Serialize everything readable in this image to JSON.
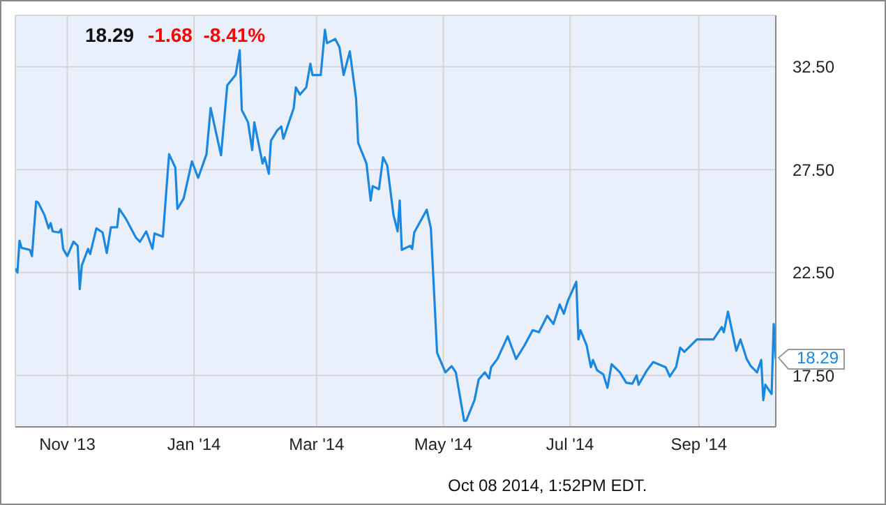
{
  "chart_data": {
    "type": "line",
    "title": "18.29",
    "subtitle": "-1.68  -8.41%",
    "annotations": [
      {
        "text": "18.29",
        "x": "2014-10-08",
        "y": 18.29
      },
      "Oct 08 2014, 1:52PM EDT."
    ],
    "x": [
      "2013-10-07",
      "2013-10-08",
      "2013-10-09",
      "2013-10-10",
      "2013-10-14",
      "2013-10-15",
      "2013-10-17",
      "2013-10-18",
      "2013-10-21",
      "2013-10-23",
      "2013-10-24",
      "2013-10-25",
      "2013-10-28",
      "2013-10-29",
      "2013-10-30",
      "2013-11-01",
      "2013-11-04",
      "2013-11-06",
      "2013-11-07",
      "2013-11-08",
      "2013-11-11",
      "2013-11-12",
      "2013-11-15",
      "2013-11-18",
      "2013-11-20",
      "2013-11-22",
      "2013-11-25",
      "2013-11-26",
      "2013-11-29",
      "2013-12-04",
      "2013-12-06",
      "2013-12-09",
      "2013-12-12",
      "2013-12-13",
      "2013-12-17",
      "2013-12-20",
      "2013-12-23",
      "2013-12-24",
      "2013-12-27",
      "2013-12-31",
      "2014-01-03",
      "2014-01-07",
      "2014-01-09",
      "2014-01-14",
      "2014-01-17",
      "2014-01-21",
      "2014-01-23",
      "2014-01-24",
      "2014-01-27",
      "2014-01-29",
      "2014-01-30",
      "2014-02-03",
      "2014-02-04",
      "2014-02-06",
      "2014-02-07",
      "2014-02-10",
      "2014-02-12",
      "2014-02-13",
      "2014-02-18",
      "2014-02-19",
      "2014-02-21",
      "2014-02-24",
      "2014-02-26",
      "2014-02-27",
      "2014-03-03",
      "2014-03-05",
      "2014-03-06",
      "2014-03-10",
      "2014-03-12",
      "2014-03-14",
      "2014-03-17",
      "2014-03-20",
      "2014-03-21",
      "2014-03-25",
      "2014-03-27",
      "2014-03-28",
      "2014-03-31",
      "2014-04-02",
      "2014-04-04",
      "2014-04-07",
      "2014-04-09",
      "2014-04-10",
      "2014-04-11",
      "2014-04-15",
      "2014-04-16",
      "2014-04-17",
      "2014-04-23",
      "2014-04-25",
      "2014-04-28",
      "2014-05-02",
      "2014-05-05",
      "2014-05-07",
      "2014-05-11",
      "2014-05-12",
      "2014-05-16",
      "2014-05-18",
      "2014-05-21",
      "2014-05-23",
      "2014-05-24",
      "2014-05-27",
      "2014-06-01",
      "2014-06-05",
      "2014-06-09",
      "2014-06-13",
      "2014-06-16",
      "2014-06-20",
      "2014-06-23",
      "2014-06-26",
      "2014-06-28",
      "2014-06-30",
      "2014-07-04",
      "2014-07-05",
      "2014-07-06",
      "2014-07-09",
      "2014-07-11",
      "2014-07-12",
      "2014-07-14",
      "2014-07-17",
      "2014-07-19",
      "2014-07-21",
      "2014-07-25",
      "2014-07-28",
      "2014-07-31",
      "2014-08-02",
      "2014-08-03",
      "2014-08-07",
      "2014-08-10",
      "2014-08-16",
      "2014-08-18",
      "2014-08-21",
      "2014-08-23",
      "2014-08-25",
      "2014-08-29",
      "2014-08-31",
      "2014-09-05",
      "2014-09-08",
      "2014-09-12",
      "2014-09-13",
      "2014-09-15",
      "2014-09-19",
      "2014-09-21",
      "2014-09-24",
      "2014-09-26",
      "2014-09-29",
      "2014-10-01",
      "2014-10-02",
      "2014-10-03",
      "2014-10-06",
      "2014-10-07",
      "2014-10-08"
    ],
    "series": [
      {
        "color": "#1a87e0",
        "values": [
          22.7,
          22.5,
          24.05,
          23.7,
          23.6,
          23.3,
          25.95,
          25.9,
          25.3,
          24.65,
          24.9,
          24.5,
          24.45,
          24.6,
          23.65,
          23.3,
          24.0,
          23.8,
          21.7,
          22.85,
          23.65,
          23.4,
          24.65,
          24.45,
          23.45,
          24.7,
          24.7,
          25.6,
          25.15,
          24.2,
          24.0,
          24.5,
          23.65,
          24.4,
          24.25,
          28.25,
          27.6,
          25.6,
          26.1,
          27.9,
          27.1,
          28.25,
          30.5,
          28.2,
          31.6,
          32.1,
          33.3,
          30.4,
          29.8,
          28.45,
          29.8,
          27.8,
          28.1,
          27.3,
          28.9,
          29.4,
          29.6,
          29.0,
          30.5,
          31.5,
          31.15,
          31.5,
          32.65,
          32.1,
          32.1,
          34.3,
          33.65,
          33.85,
          33.45,
          32.1,
          33.25,
          30.95,
          28.8,
          27.8,
          26.0,
          26.7,
          26.55,
          28.1,
          27.7,
          25.3,
          24.5,
          26.0,
          23.6,
          23.8,
          23.65,
          24.45,
          25.55,
          24.65,
          18.6,
          17.65,
          17.95,
          17.65,
          15.3,
          15.3,
          16.3,
          17.3,
          17.65,
          17.35,
          17.9,
          18.3,
          19.4,
          18.3,
          18.95,
          19.7,
          19.6,
          20.4,
          20.0,
          20.95,
          20.5,
          21.15,
          22.05,
          19.25,
          19.7,
          18.95,
          17.9,
          18.25,
          17.75,
          17.55,
          16.9,
          18.05,
          17.65,
          17.15,
          17.1,
          17.5,
          17.05,
          17.75,
          18.15,
          17.9,
          17.45,
          17.9,
          18.85,
          18.65,
          19.05,
          19.25,
          19.25,
          19.25,
          19.85,
          19.6,
          20.6,
          18.7,
          19.25,
          18.3,
          17.95,
          17.65,
          18.25,
          16.3,
          17.05,
          16.6,
          20.0,
          18.29
        ]
      }
    ],
    "xlim": [
      "2013-10-07",
      "2014-10-08"
    ],
    "xticks": [
      {
        "value": "2013-11-01",
        "label": "Nov '13"
      },
      {
        "value": "2014-01-01",
        "label": "Jan '14"
      },
      {
        "value": "2014-03-01",
        "label": "Mar '14"
      },
      {
        "value": "2014-05-01",
        "label": "May '14"
      },
      {
        "value": "2014-07-01",
        "label": "Jul '14"
      },
      {
        "value": "2014-09-01",
        "label": "Sep '14"
      }
    ],
    "ylim": [
      15,
      35
    ],
    "yticks": [
      {
        "value": 17.5,
        "label": "17.50"
      },
      {
        "value": 22.5,
        "label": "22.50"
      },
      {
        "value": 27.5,
        "label": "27.50"
      },
      {
        "value": 32.5,
        "label": "32.50"
      }
    ],
    "grid": true,
    "legend": false,
    "marker": "none",
    "line_style": "solid"
  }
}
